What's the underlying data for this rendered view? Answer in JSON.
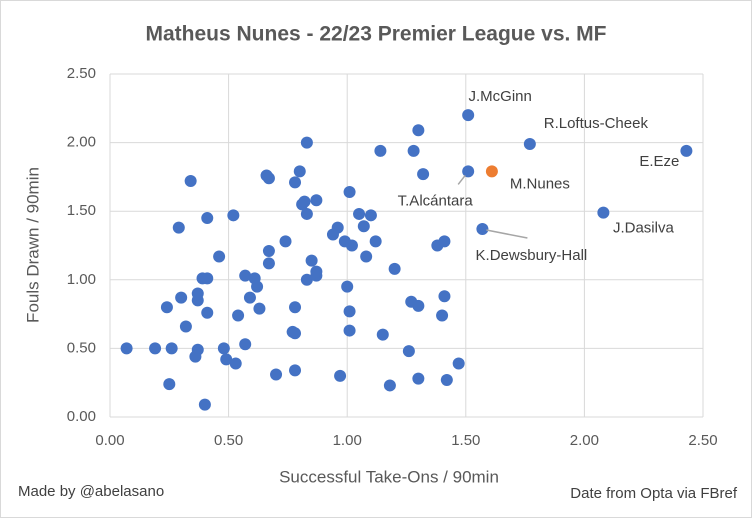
{
  "chart_data": {
    "type": "scatter",
    "title": "Matheus Nunes - 22/23 Premier League vs. MF",
    "x_label": "Successful Take-Ons / 90min",
    "y_label": "Fouls Drawn / 90min",
    "credits": [
      "Made by @abelasano",
      "Date from Opta via FBref"
    ],
    "xlim": [
      0,
      2.5
    ],
    "ylim": [
      0,
      2.5
    ],
    "xticks": [
      {
        "value": 0,
        "label": "0.00"
      },
      {
        "value": 0.5,
        "label": "0.50"
      },
      {
        "value": 1,
        "label": "1.00"
      },
      {
        "value": 1.5,
        "label": "1.50"
      },
      {
        "value": 2,
        "label": "2.00"
      },
      {
        "value": 2.5,
        "label": "2.50"
      }
    ],
    "yticks": [
      {
        "value": 0,
        "label": "0.00"
      },
      {
        "value": 0.5,
        "label": "0.50"
      },
      {
        "value": 1,
        "label": "1.00"
      },
      {
        "value": 1.5,
        "label": "1.50"
      },
      {
        "value": 2,
        "label": "2.00"
      },
      {
        "value": 2.5,
        "label": "2.50"
      }
    ],
    "grid": true,
    "series": [
      {
        "color": "#4472c4",
        "x": [
          0.07,
          0.19,
          0.26,
          0.24,
          0.25,
          0.3,
          0.29,
          0.32,
          0.34,
          0.36,
          0.37,
          0.37,
          0.37,
          0.39,
          0.41,
          0.41,
          0.41,
          0.4,
          0.46,
          0.48,
          0.49,
          0.52,
          0.53,
          0.54,
          0.57,
          0.57,
          0.59,
          0.61,
          0.62,
          0.63,
          0.66,
          0.67,
          0.67,
          0.67,
          0.7,
          0.74,
          0.77,
          0.78,
          0.78,
          0.78,
          0.78,
          0.8,
          0.81,
          0.82,
          0.83,
          0.83,
          0.83,
          0.85,
          0.87,
          0.87,
          0.87,
          0.94,
          0.96,
          0.97,
          0.99,
          1.0,
          1.01,
          1.01,
          1.01,
          1.02,
          1.05,
          1.07,
          1.08,
          1.1,
          1.12,
          1.14,
          1.15,
          1.18,
          1.2,
          1.26,
          1.27,
          1.28,
          1.3,
          1.3,
          1.3,
          1.32,
          1.38,
          1.4,
          1.41,
          1.41,
          1.42,
          1.47
        ],
        "values": [
          0.5,
          0.5,
          0.5,
          0.8,
          0.24,
          0.87,
          1.38,
          0.66,
          1.72,
          0.44,
          0.49,
          0.9,
          0.85,
          1.01,
          1.01,
          1.45,
          0.76,
          0.09,
          1.17,
          0.5,
          0.42,
          1.47,
          0.39,
          0.74,
          0.53,
          1.03,
          0.87,
          1.01,
          0.95,
          0.79,
          1.76,
          1.74,
          1.21,
          1.12,
          0.31,
          1.28,
          0.62,
          0.61,
          0.8,
          0.34,
          1.71,
          1.79,
          1.55,
          1.57,
          2.0,
          1.48,
          1.0,
          1.14,
          1.03,
          1.06,
          1.58,
          1.33,
          1.38,
          0.3,
          1.28,
          0.95,
          0.63,
          0.77,
          1.64,
          1.25,
          1.48,
          1.39,
          1.17,
          1.47,
          1.28,
          1.94,
          0.6,
          0.23,
          1.08,
          0.48,
          0.84,
          1.94,
          2.09,
          0.81,
          0.28,
          1.77,
          1.25,
          0.74,
          1.28,
          0.88,
          0.27,
          0.39
        ]
      },
      {
        "color": "#4472c4",
        "x": [
          1.51,
          1.51,
          1.57,
          1.77,
          2.08,
          2.43
        ],
        "values": [
          2.2,
          1.79,
          1.37,
          1.99,
          1.49,
          1.94
        ],
        "labels": [
          "J.McGinn",
          "T.Alcántara",
          "K.Dewsbury-Hall",
          "R.Loftus-Cheek",
          "J.Dasilva",
          "E.Eze"
        ]
      },
      {
        "color": "#ed7d31",
        "x": [
          1.61
        ],
        "values": [
          1.79
        ],
        "labels": [
          "M.Nunes"
        ]
      }
    ]
  }
}
